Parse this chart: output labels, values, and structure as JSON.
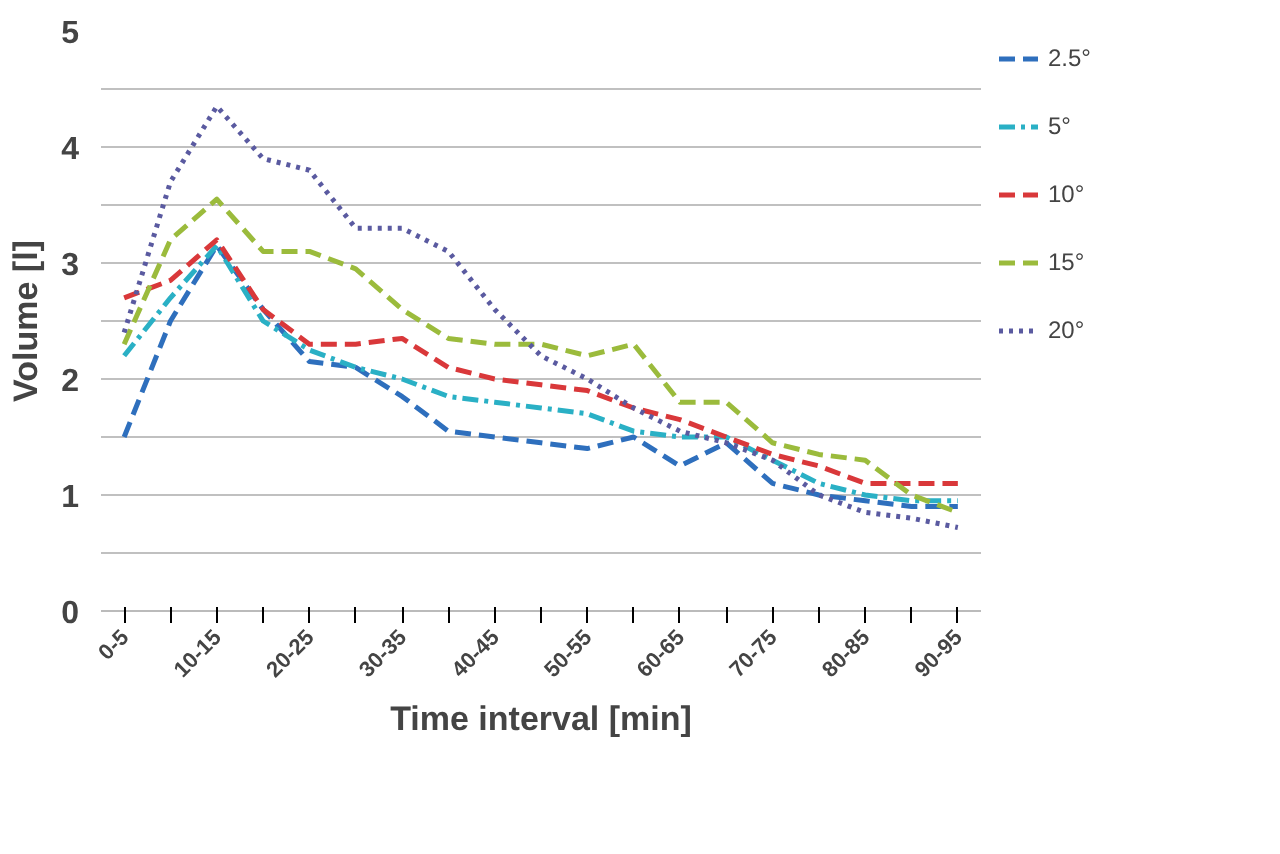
{
  "chart_data": {
    "type": "line",
    "xlabel": "Time interval [min]",
    "ylabel": "Volume [l]",
    "categories": [
      "0-5",
      null,
      "10-15",
      null,
      "20-25",
      null,
      "30-35",
      null,
      "40-45",
      null,
      "50-55",
      null,
      "60-65",
      null,
      "70-75",
      null,
      "80-85",
      null,
      "90-95"
    ],
    "ylim": [
      0,
      5
    ],
    "yticks": [
      0,
      {
        "value": 0.5,
        "label": null
      },
      1,
      {
        "value": 1.5,
        "label": null
      },
      2,
      {
        "value": 2.5,
        "label": null
      },
      3,
      {
        "value": 3.5,
        "label": null
      },
      4,
      {
        "value": 4.5,
        "label": null
      },
      5
    ],
    "grid": "y",
    "legend": "right",
    "marker": "none",
    "series": [
      {
        "name": "2.5°",
        "color": "#2e6fbd",
        "line_style": "dashed",
        "values": [
          1.5,
          2.5,
          3.15,
          2.6,
          2.15,
          2.1,
          1.85,
          1.55,
          1.5,
          1.45,
          1.4,
          1.5,
          1.25,
          1.45,
          1.1,
          1.0,
          0.95,
          0.9,
          0.9
        ]
      },
      {
        "name": "5°",
        "color": "#2ab0c5",
        "line_style": "dashdot",
        "values": [
          2.2,
          2.7,
          3.15,
          2.5,
          2.25,
          2.1,
          2.0,
          1.85,
          1.8,
          1.75,
          1.7,
          1.55,
          1.5,
          1.5,
          1.3,
          1.1,
          1.0,
          0.95,
          0.95
        ]
      },
      {
        "name": "10°",
        "color": "#d9383a",
        "line_style": "dashed",
        "values": [
          2.7,
          2.85,
          3.2,
          2.6,
          2.3,
          2.3,
          2.35,
          2.1,
          2.0,
          1.95,
          1.9,
          1.75,
          1.65,
          1.5,
          1.35,
          1.25,
          1.1,
          1.1,
          1.1
        ]
      },
      {
        "name": "15°",
        "color": "#9bbb3c",
        "line_style": "dashed",
        "values": [
          2.3,
          3.2,
          3.55,
          3.1,
          3.1,
          2.95,
          2.6,
          2.35,
          2.3,
          2.3,
          2.2,
          2.3,
          1.8,
          1.8,
          1.45,
          1.35,
          1.3,
          1.0,
          0.85
        ]
      },
      {
        "name": "20°",
        "color": "#5a5aa0",
        "line_style": "dotted",
        "values": [
          2.4,
          3.7,
          4.35,
          3.9,
          3.8,
          3.3,
          3.3,
          3.1,
          2.6,
          2.2,
          2.0,
          1.75,
          1.55,
          1.45,
          1.3,
          1.0,
          0.85,
          0.8,
          0.72
        ]
      }
    ]
  }
}
